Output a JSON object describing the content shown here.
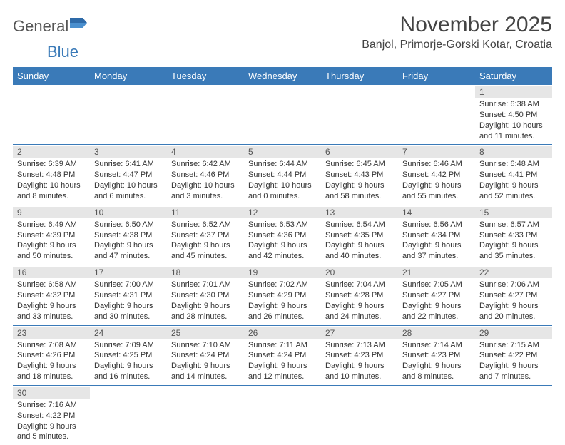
{
  "brand": {
    "part1": "General",
    "part2": "Blue"
  },
  "title": "November 2025",
  "location": "Banjol, Primorje-Gorski Kotar, Croatia",
  "colors": {
    "header_bg": "#3a7ab8",
    "header_text": "#ffffff",
    "daynum_bg": "#e6e6e6",
    "border": "#3a7ab8",
    "text": "#333333",
    "brand_gray": "#555555",
    "brand_blue": "#3a7ab8"
  },
  "day_headers": [
    "Sunday",
    "Monday",
    "Tuesday",
    "Wednesday",
    "Thursday",
    "Friday",
    "Saturday"
  ],
  "weeks": [
    [
      null,
      null,
      null,
      null,
      null,
      null,
      {
        "n": "1",
        "sr": "Sunrise: 6:38 AM",
        "ss": "Sunset: 4:50 PM",
        "dl": "Daylight: 10 hours and 11 minutes."
      }
    ],
    [
      {
        "n": "2",
        "sr": "Sunrise: 6:39 AM",
        "ss": "Sunset: 4:48 PM",
        "dl": "Daylight: 10 hours and 8 minutes."
      },
      {
        "n": "3",
        "sr": "Sunrise: 6:41 AM",
        "ss": "Sunset: 4:47 PM",
        "dl": "Daylight: 10 hours and 6 minutes."
      },
      {
        "n": "4",
        "sr": "Sunrise: 6:42 AM",
        "ss": "Sunset: 4:46 PM",
        "dl": "Daylight: 10 hours and 3 minutes."
      },
      {
        "n": "5",
        "sr": "Sunrise: 6:44 AM",
        "ss": "Sunset: 4:44 PM",
        "dl": "Daylight: 10 hours and 0 minutes."
      },
      {
        "n": "6",
        "sr": "Sunrise: 6:45 AM",
        "ss": "Sunset: 4:43 PM",
        "dl": "Daylight: 9 hours and 58 minutes."
      },
      {
        "n": "7",
        "sr": "Sunrise: 6:46 AM",
        "ss": "Sunset: 4:42 PM",
        "dl": "Daylight: 9 hours and 55 minutes."
      },
      {
        "n": "8",
        "sr": "Sunrise: 6:48 AM",
        "ss": "Sunset: 4:41 PM",
        "dl": "Daylight: 9 hours and 52 minutes."
      }
    ],
    [
      {
        "n": "9",
        "sr": "Sunrise: 6:49 AM",
        "ss": "Sunset: 4:39 PM",
        "dl": "Daylight: 9 hours and 50 minutes."
      },
      {
        "n": "10",
        "sr": "Sunrise: 6:50 AM",
        "ss": "Sunset: 4:38 PM",
        "dl": "Daylight: 9 hours and 47 minutes."
      },
      {
        "n": "11",
        "sr": "Sunrise: 6:52 AM",
        "ss": "Sunset: 4:37 PM",
        "dl": "Daylight: 9 hours and 45 minutes."
      },
      {
        "n": "12",
        "sr": "Sunrise: 6:53 AM",
        "ss": "Sunset: 4:36 PM",
        "dl": "Daylight: 9 hours and 42 minutes."
      },
      {
        "n": "13",
        "sr": "Sunrise: 6:54 AM",
        "ss": "Sunset: 4:35 PM",
        "dl": "Daylight: 9 hours and 40 minutes."
      },
      {
        "n": "14",
        "sr": "Sunrise: 6:56 AM",
        "ss": "Sunset: 4:34 PM",
        "dl": "Daylight: 9 hours and 37 minutes."
      },
      {
        "n": "15",
        "sr": "Sunrise: 6:57 AM",
        "ss": "Sunset: 4:33 PM",
        "dl": "Daylight: 9 hours and 35 minutes."
      }
    ],
    [
      {
        "n": "16",
        "sr": "Sunrise: 6:58 AM",
        "ss": "Sunset: 4:32 PM",
        "dl": "Daylight: 9 hours and 33 minutes."
      },
      {
        "n": "17",
        "sr": "Sunrise: 7:00 AM",
        "ss": "Sunset: 4:31 PM",
        "dl": "Daylight: 9 hours and 30 minutes."
      },
      {
        "n": "18",
        "sr": "Sunrise: 7:01 AM",
        "ss": "Sunset: 4:30 PM",
        "dl": "Daylight: 9 hours and 28 minutes."
      },
      {
        "n": "19",
        "sr": "Sunrise: 7:02 AM",
        "ss": "Sunset: 4:29 PM",
        "dl": "Daylight: 9 hours and 26 minutes."
      },
      {
        "n": "20",
        "sr": "Sunrise: 7:04 AM",
        "ss": "Sunset: 4:28 PM",
        "dl": "Daylight: 9 hours and 24 minutes."
      },
      {
        "n": "21",
        "sr": "Sunrise: 7:05 AM",
        "ss": "Sunset: 4:27 PM",
        "dl": "Daylight: 9 hours and 22 minutes."
      },
      {
        "n": "22",
        "sr": "Sunrise: 7:06 AM",
        "ss": "Sunset: 4:27 PM",
        "dl": "Daylight: 9 hours and 20 minutes."
      }
    ],
    [
      {
        "n": "23",
        "sr": "Sunrise: 7:08 AM",
        "ss": "Sunset: 4:26 PM",
        "dl": "Daylight: 9 hours and 18 minutes."
      },
      {
        "n": "24",
        "sr": "Sunrise: 7:09 AM",
        "ss": "Sunset: 4:25 PM",
        "dl": "Daylight: 9 hours and 16 minutes."
      },
      {
        "n": "25",
        "sr": "Sunrise: 7:10 AM",
        "ss": "Sunset: 4:24 PM",
        "dl": "Daylight: 9 hours and 14 minutes."
      },
      {
        "n": "26",
        "sr": "Sunrise: 7:11 AM",
        "ss": "Sunset: 4:24 PM",
        "dl": "Daylight: 9 hours and 12 minutes."
      },
      {
        "n": "27",
        "sr": "Sunrise: 7:13 AM",
        "ss": "Sunset: 4:23 PM",
        "dl": "Daylight: 9 hours and 10 minutes."
      },
      {
        "n": "28",
        "sr": "Sunrise: 7:14 AM",
        "ss": "Sunset: 4:23 PM",
        "dl": "Daylight: 9 hours and 8 minutes."
      },
      {
        "n": "29",
        "sr": "Sunrise: 7:15 AM",
        "ss": "Sunset: 4:22 PM",
        "dl": "Daylight: 9 hours and 7 minutes."
      }
    ],
    [
      {
        "n": "30",
        "sr": "Sunrise: 7:16 AM",
        "ss": "Sunset: 4:22 PM",
        "dl": "Daylight: 9 hours and 5 minutes."
      },
      null,
      null,
      null,
      null,
      null,
      null
    ]
  ]
}
